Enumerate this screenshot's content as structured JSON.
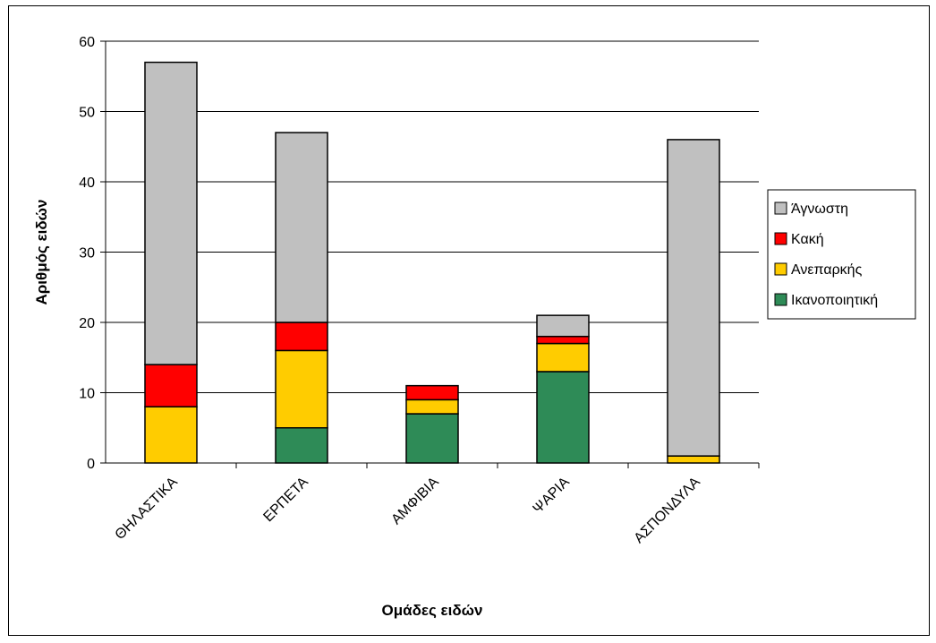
{
  "chart_data": {
    "type": "bar",
    "stacked": true,
    "title": "",
    "xlabel": "Ομάδες ειδών",
    "ylabel": "Αριθμός ειδών",
    "ylim": [
      0,
      60
    ],
    "yticks": [
      0,
      10,
      20,
      30,
      40,
      50,
      60
    ],
    "grid": true,
    "legend_position": "right",
    "categories": [
      "ΘΗΛΑΣΤΙΚΑ",
      "ΕΡΠΕΤΑ",
      "ΑΜΦΙΒΙΑ",
      "ΨΑΡΙΑ",
      "ΑΣΠΟΝΔΥΛΑ"
    ],
    "series": [
      {
        "name": "Ικανοποιητική",
        "color": "#2e8b57",
        "values": [
          0,
          5,
          7,
          13,
          0
        ]
      },
      {
        "name": "Ανεπαρκής",
        "color": "#ffcc00",
        "values": [
          8,
          11,
          2,
          4,
          1
        ]
      },
      {
        "name": "Κακή",
        "color": "#ff0000",
        "values": [
          6,
          4,
          2,
          1,
          0
        ]
      },
      {
        "name": "Άγνωστη",
        "color": "#c0c0c0",
        "values": [
          43,
          27,
          0,
          3,
          45
        ]
      }
    ],
    "legend_order": [
      "Άγνωστη",
      "Κακή",
      "Ανεπαρκής",
      "Ικανοποιητική"
    ]
  }
}
